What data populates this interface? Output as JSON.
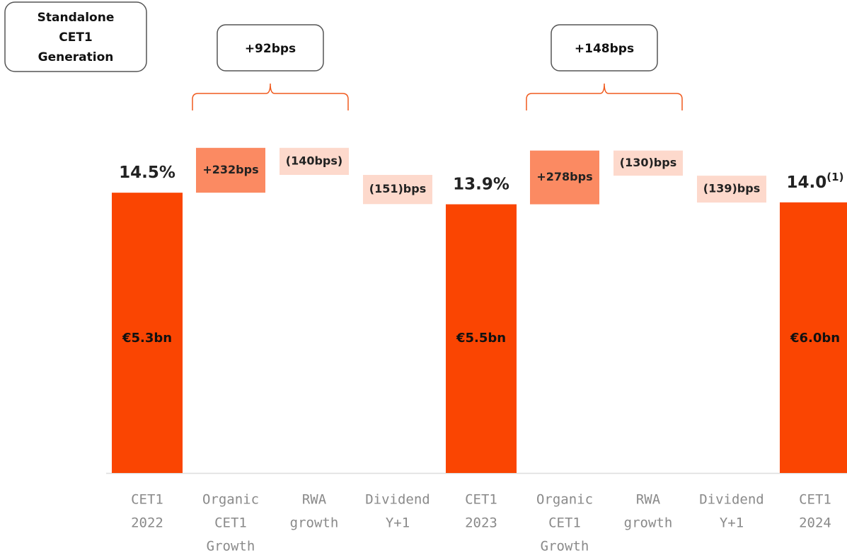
{
  "chart_data": {
    "type": "waterfall",
    "title": [
      "Standalone",
      "CET1",
      "Generation"
    ],
    "categories": [
      [
        "CET1",
        "2022"
      ],
      [
        "Organic",
        "CET1",
        "Growth"
      ],
      [
        "RWA",
        "growth"
      ],
      [
        "Dividend",
        "Y+1"
      ],
      [
        "CET1",
        "2023"
      ],
      [
        "Organic",
        "CET1",
        "Growth"
      ],
      [
        "RWA",
        "growth"
      ],
      [
        "Dividend",
        "Y+1"
      ],
      [
        "CET1",
        "2024"
      ]
    ],
    "values": [
      14.5,
      2.32,
      -1.4,
      -1.51,
      13.9,
      2.78,
      -1.3,
      -1.39,
      14.0
    ],
    "value_labels": [
      "14.5%",
      "+232bps",
      "(140bps)",
      "(151)bps",
      "13.9%",
      "+278bps",
      "(130)bps",
      "(139)bps",
      "14.0"
    ],
    "value_label_notes": [
      null,
      null,
      null,
      null,
      null,
      null,
      null,
      null,
      "(1)"
    ],
    "inner_labels": [
      "€5.3bn",
      null,
      null,
      null,
      "€5.5bn",
      null,
      null,
      null,
      "€6.0bn"
    ],
    "totals": [
      true,
      false,
      false,
      false,
      true,
      false,
      false,
      false,
      true
    ],
    "colors": {
      "total": "#fa4502",
      "increase": "#fb8a62",
      "decrease": "#fdd9cc"
    },
    "annotations": [
      {
        "text": "+92bps",
        "spans": [
          1,
          2
        ]
      },
      {
        "text": "+148bps",
        "spans": [
          5,
          6
        ]
      }
    ]
  }
}
